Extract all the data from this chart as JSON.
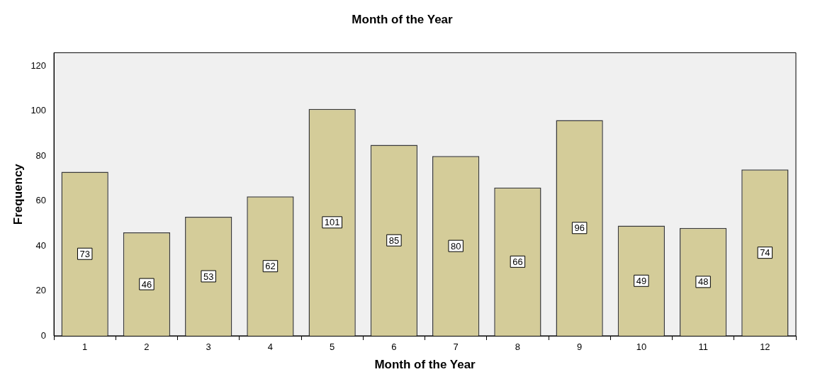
{
  "chart_data": {
    "type": "bar",
    "title": "Month of the Year",
    "xlabel": "Month of the Year",
    "ylabel": "Frequency",
    "categories": [
      "1",
      "2",
      "3",
      "4",
      "5",
      "6",
      "7",
      "8",
      "9",
      "10",
      "11",
      "12"
    ],
    "values": [
      73,
      46,
      53,
      62,
      101,
      85,
      80,
      66,
      96,
      49,
      48,
      74
    ],
    "color": "#d4cc99",
    "ylim": [
      0,
      126
    ],
    "yticks": [
      0,
      20,
      40,
      60,
      80,
      100,
      120
    ],
    "grid": false,
    "legend": false,
    "data_labels": true
  }
}
